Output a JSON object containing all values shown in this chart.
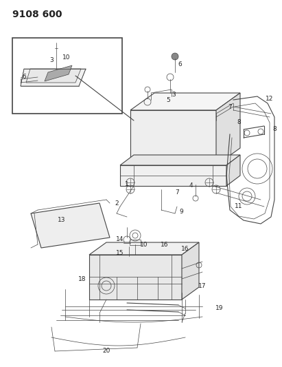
{
  "title": "9108 600",
  "background_color": "#ffffff",
  "title_fontsize": 10,
  "title_fontweight": "bold",
  "fig_width": 4.11,
  "fig_height": 5.33,
  "dpi": 100,
  "line_color": "#444444",
  "label_fontsize": 7,
  "label_color": "#222222"
}
